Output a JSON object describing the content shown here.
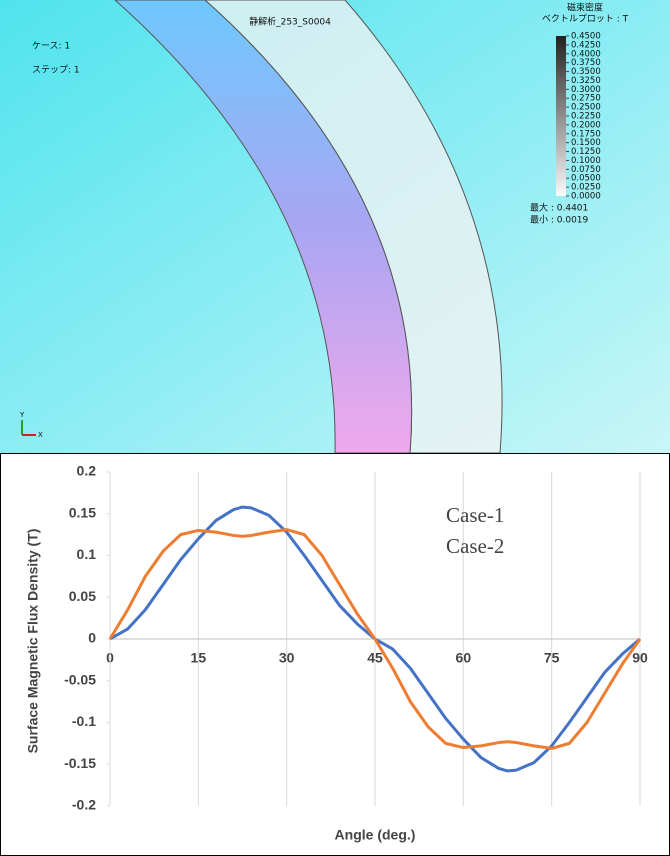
{
  "simulation": {
    "title": "静解析_253_S0004",
    "case": "ケース: 1",
    "step": "ステップ: 1",
    "legend_title": "磁束密度",
    "legend_subtitle": "ベクトルプロット : T",
    "colorbar": {
      "ticks": [
        {
          "value": 0.45,
          "label": "0.4500"
        },
        {
          "value": 0.425,
          "label": "0.4250"
        },
        {
          "value": 0.4,
          "label": "0.4000"
        },
        {
          "value": 0.375,
          "label": "0.3750"
        },
        {
          "value": 0.35,
          "label": "0.3500"
        },
        {
          "value": 0.325,
          "label": "0.3250"
        },
        {
          "value": 0.3,
          "label": "0.3000"
        },
        {
          "value": 0.275,
          "label": "0.2750"
        },
        {
          "value": 0.25,
          "label": "0.2500"
        },
        {
          "value": 0.225,
          "label": "0.2250"
        },
        {
          "value": 0.2,
          "label": "0.2000"
        },
        {
          "value": 0.175,
          "label": "0.1750"
        },
        {
          "value": 0.15,
          "label": "0.1500"
        },
        {
          "value": 0.125,
          "label": "0.1250"
        },
        {
          "value": 0.1,
          "label": "0.1000"
        },
        {
          "value": 0.075,
          "label": "0.0750"
        },
        {
          "value": 0.05,
          "label": "0.0500"
        },
        {
          "value": 0.025,
          "label": "0.0250"
        },
        {
          "value": 0,
          "label": "0.0000"
        }
      ]
    },
    "max": "最大 : 0.4401",
    "min": "最小 : 0.0019",
    "axis_y": "Y",
    "axis_x": "X"
  },
  "chart_data": {
    "type": "line",
    "xlabel": "Angle (deg.)",
    "ylabel": "Surface Magnetic Flux Density (T)",
    "x": [
      0,
      3,
      6,
      9,
      12,
      15,
      18,
      21,
      22.5,
      24,
      27,
      30,
      33,
      36,
      39,
      42,
      45,
      48,
      51,
      54,
      57,
      60,
      63,
      66,
      67.5,
      69,
      72,
      75,
      78,
      81,
      84,
      87,
      90
    ],
    "series": [
      {
        "name": "Case-1",
        "color": "#4472c4",
        "values": [
          0,
          0.012,
          0.035,
          0.065,
          0.095,
          0.12,
          0.142,
          0.155,
          0.158,
          0.157,
          0.148,
          0.128,
          0.1,
          0.07,
          0.04,
          0.018,
          0,
          -0.012,
          -0.035,
          -0.065,
          -0.095,
          -0.12,
          -0.142,
          -0.155,
          -0.158,
          -0.157,
          -0.148,
          -0.128,
          -0.1,
          -0.07,
          -0.04,
          -0.018,
          0
        ]
      },
      {
        "name": "Case-2",
        "color": "#ed7d31",
        "values": [
          0,
          0.035,
          0.075,
          0.105,
          0.125,
          0.13,
          0.128,
          0.124,
          0.123,
          0.124,
          0.128,
          0.131,
          0.125,
          0.1,
          0.065,
          0.03,
          0,
          -0.035,
          -0.075,
          -0.105,
          -0.125,
          -0.13,
          -0.128,
          -0.124,
          -0.123,
          -0.124,
          -0.128,
          -0.131,
          -0.125,
          -0.1,
          -0.065,
          -0.03,
          0
        ]
      }
    ],
    "xlim": [
      0,
      90
    ],
    "ylim": [
      -0.2,
      0.2
    ],
    "xticks": [
      0,
      15,
      30,
      45,
      60,
      75,
      90
    ],
    "yticks": [
      0.2,
      0.15,
      0.1,
      0.05,
      0,
      -0.05,
      -0.1,
      -0.15,
      -0.2
    ],
    "grid": "x"
  }
}
